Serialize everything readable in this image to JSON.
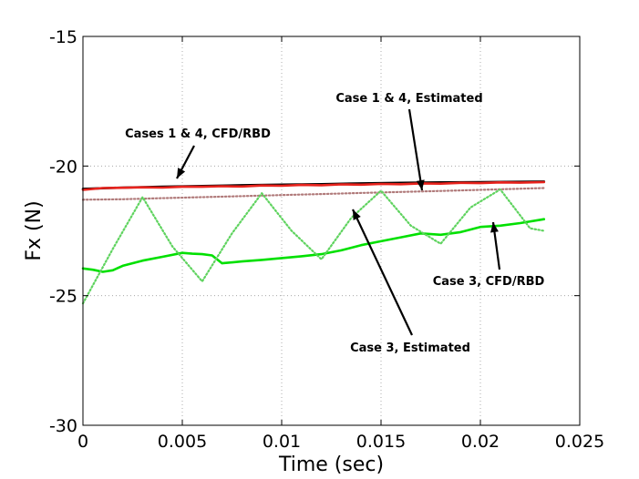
{
  "chart_data": {
    "type": "line",
    "title": "",
    "xlabel": "Time (sec)",
    "ylabel": "Fx (N)",
    "xlim": [
      0,
      0.025
    ],
    "ylim": [
      -30,
      -15
    ],
    "xticks": [
      0,
      0.005,
      0.01,
      0.015,
      0.02,
      0.025
    ],
    "xtick_labels": [
      "0",
      "0.005",
      "0.01",
      "0.015",
      "0.02",
      "0.025"
    ],
    "yticks": [
      -30,
      -25,
      -20,
      -15
    ],
    "ytick_labels": [
      "-30",
      "-25",
      "-20",
      "-15"
    ],
    "grid": true,
    "legend": "none",
    "series": [
      {
        "color": "#000000",
        "style": "solid",
        "x": [
          0,
          0.002,
          0.004,
          0.006,
          0.008,
          0.01,
          0.012,
          0.014,
          0.016,
          0.018,
          0.02,
          0.0232
        ],
        "y": [
          -20.88,
          -20.83,
          -20.8,
          -20.77,
          -20.74,
          -20.72,
          -20.7,
          -20.67,
          -20.65,
          -20.63,
          -20.62,
          -20.6
        ]
      },
      {
        "color": "#e8231d",
        "style": "solid",
        "x": [
          0,
          0.001,
          0.002,
          0.003,
          0.004,
          0.005,
          0.006,
          0.007,
          0.008,
          0.009,
          0.01,
          0.011,
          0.012,
          0.013,
          0.014,
          0.015,
          0.016,
          0.017,
          0.018,
          0.019,
          0.02,
          0.021,
          0.022,
          0.0232
        ],
        "y": [
          -20.92,
          -20.85,
          -20.84,
          -20.82,
          -20.83,
          -20.8,
          -20.8,
          -20.78,
          -20.79,
          -20.75,
          -20.76,
          -20.73,
          -20.74,
          -20.71,
          -20.72,
          -20.69,
          -20.7,
          -20.67,
          -20.68,
          -20.65,
          -20.66,
          -20.63,
          -20.64,
          -20.62
        ]
      },
      {
        "color": "#b07a7a",
        "style": "dotted",
        "x": [
          0,
          0.002,
          0.004,
          0.006,
          0.008,
          0.01,
          0.012,
          0.014,
          0.016,
          0.018,
          0.02,
          0.0232
        ],
        "y": [
          -21.3,
          -21.28,
          -21.24,
          -21.2,
          -21.16,
          -21.12,
          -21.08,
          -21.04,
          -21.0,
          -20.96,
          -20.92,
          -20.85
        ]
      },
      {
        "color": "#00e000",
        "style": "solid",
        "x": [
          0,
          0.0005,
          0.001,
          0.0015,
          0.002,
          0.003,
          0.004,
          0.005,
          0.0055,
          0.006,
          0.0065,
          0.007,
          0.008,
          0.009,
          0.01,
          0.011,
          0.012,
          0.013,
          0.014,
          0.015,
          0.016,
          0.017,
          0.018,
          0.019,
          0.02,
          0.021,
          0.022,
          0.0232
        ],
        "y": [
          -23.95,
          -24.0,
          -24.08,
          -24.02,
          -23.85,
          -23.65,
          -23.5,
          -23.35,
          -23.38,
          -23.4,
          -23.45,
          -23.75,
          -23.68,
          -23.62,
          -23.55,
          -23.48,
          -23.4,
          -23.25,
          -23.05,
          -22.9,
          -22.75,
          -22.6,
          -22.65,
          -22.55,
          -22.35,
          -22.3,
          -22.2,
          -22.05
        ]
      },
      {
        "color": "#5fd35f",
        "style": "dotted",
        "x": [
          0,
          0.0015,
          0.003,
          0.0045,
          0.006,
          0.0075,
          0.009,
          0.0105,
          0.012,
          0.0135,
          0.015,
          0.0165,
          0.018,
          0.0195,
          0.021,
          0.0225,
          0.0232
        ],
        "y": [
          -25.3,
          -23.2,
          -21.2,
          -23.1,
          -24.45,
          -22.6,
          -21.05,
          -22.5,
          -23.6,
          -22.0,
          -20.95,
          -22.3,
          -23.0,
          -21.6,
          -20.9,
          -22.4,
          -22.5
        ]
      }
    ],
    "annotations": [
      {
        "text": "Case 1 & 4, Estimated"
      },
      {
        "text": "Cases 1 & 4, CFD/RBD"
      },
      {
        "text": "Case 3, CFD/RBD"
      },
      {
        "text": "Case 3, Estimated"
      }
    ]
  }
}
